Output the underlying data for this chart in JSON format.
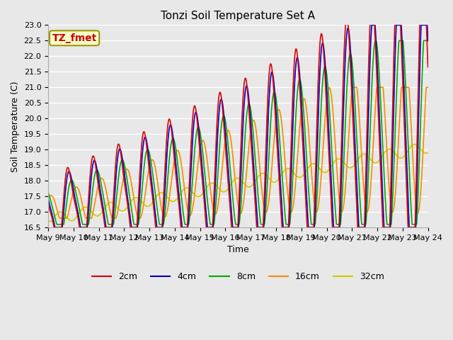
{
  "title": "Tonzi Soil Temperature Set A",
  "xlabel": "Time",
  "ylabel": "Soil Temperature (C)",
  "ylim": [
    16.5,
    23.0
  ],
  "annotation_text": "TZ_fmet",
  "annotation_color": "#cc0000",
  "annotation_bg": "#ffffcc",
  "annotation_border": "#999900",
  "series_colors": {
    "2cm": "#dd0000",
    "4cm": "#0000cc",
    "8cm": "#00aa00",
    "16cm": "#ff8800",
    "32cm": "#cccc00"
  },
  "x_tick_labels": [
    "May 9",
    "May 10",
    "May 11",
    "May 12",
    "May 13",
    "May 14",
    "May 15",
    "May 16",
    "May 17",
    "May 18",
    "May 19",
    "May 20",
    "May 21",
    "May 22",
    "May 23",
    "May 24"
  ],
  "bg_color": "#e8e8e8",
  "plot_bg": "#e8e8e8",
  "grid_color": "#ffffff",
  "title_fontsize": 11,
  "axis_fontsize": 9,
  "tick_fontsize": 8,
  "legend_fontsize": 9
}
